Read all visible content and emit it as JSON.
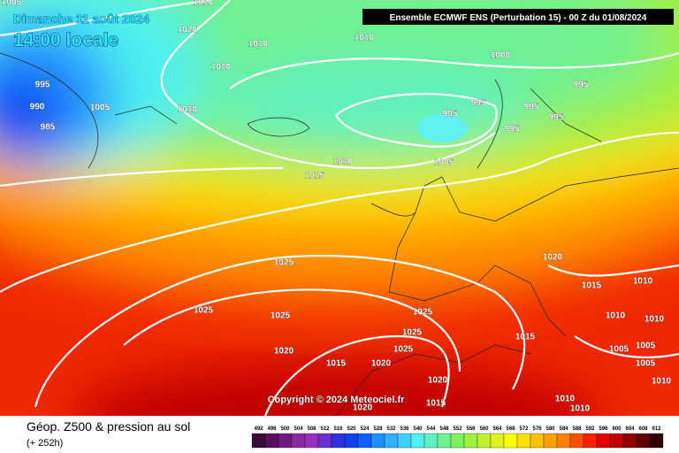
{
  "header": {
    "date": "Dimanche 11 août 2024",
    "time": "14:00 locale",
    "run": "Ensemble ECMWF ENS  (Perturbation 15)  -  00 Z du 01/08/2024"
  },
  "isobars": [
    "1005",
    "1010",
    "1020",
    "1010",
    "1010",
    "1000",
    "1010",
    "995",
    "990",
    "985",
    "1005",
    "1010",
    "995",
    "995",
    "995",
    "995",
    "995",
    "995",
    "1010",
    "1005",
    "1015",
    "1025",
    "1020",
    "1015",
    "1010",
    "1010",
    "1010",
    "1025",
    "1025",
    "1025",
    "1025",
    "1025",
    "1015",
    "1005",
    "1005",
    "1005",
    "1020",
    "1015",
    "1020",
    "1020",
    "1010",
    "1010",
    "1015",
    "1020",
    "1010"
  ],
  "copyright": "Copyright © 2024 Meteociel.fr",
  "caption": {
    "title": "Géop. Z500 & pression au sol",
    "subtitle": "(+ 252h)"
  },
  "colorbar": {
    "labels": [
      492,
      496,
      500,
      504,
      508,
      512,
      516,
      520,
      524,
      528,
      532,
      536,
      540,
      544,
      548,
      552,
      556,
      560,
      564,
      568,
      572,
      576,
      580,
      584,
      588,
      592,
      596,
      600,
      604,
      608,
      612
    ],
    "colors": [
      "#3a0a3a",
      "#5a1060",
      "#701a80",
      "#8a2aa0",
      "#9a30c0",
      "#6a30d0",
      "#3030e0",
      "#1040f0",
      "#1060ff",
      "#2090ff",
      "#30b0ff",
      "#40d0ff",
      "#50f0f0",
      "#60f0c0",
      "#70f090",
      "#80f060",
      "#a0f040",
      "#c0f030",
      "#e0f020",
      "#ffff00",
      "#ffe000",
      "#ffc000",
      "#ffa000",
      "#ff8000",
      "#ff5000",
      "#ff2000",
      "#e00000",
      "#c00000",
      "#900000",
      "#600000",
      "#300000"
    ]
  }
}
